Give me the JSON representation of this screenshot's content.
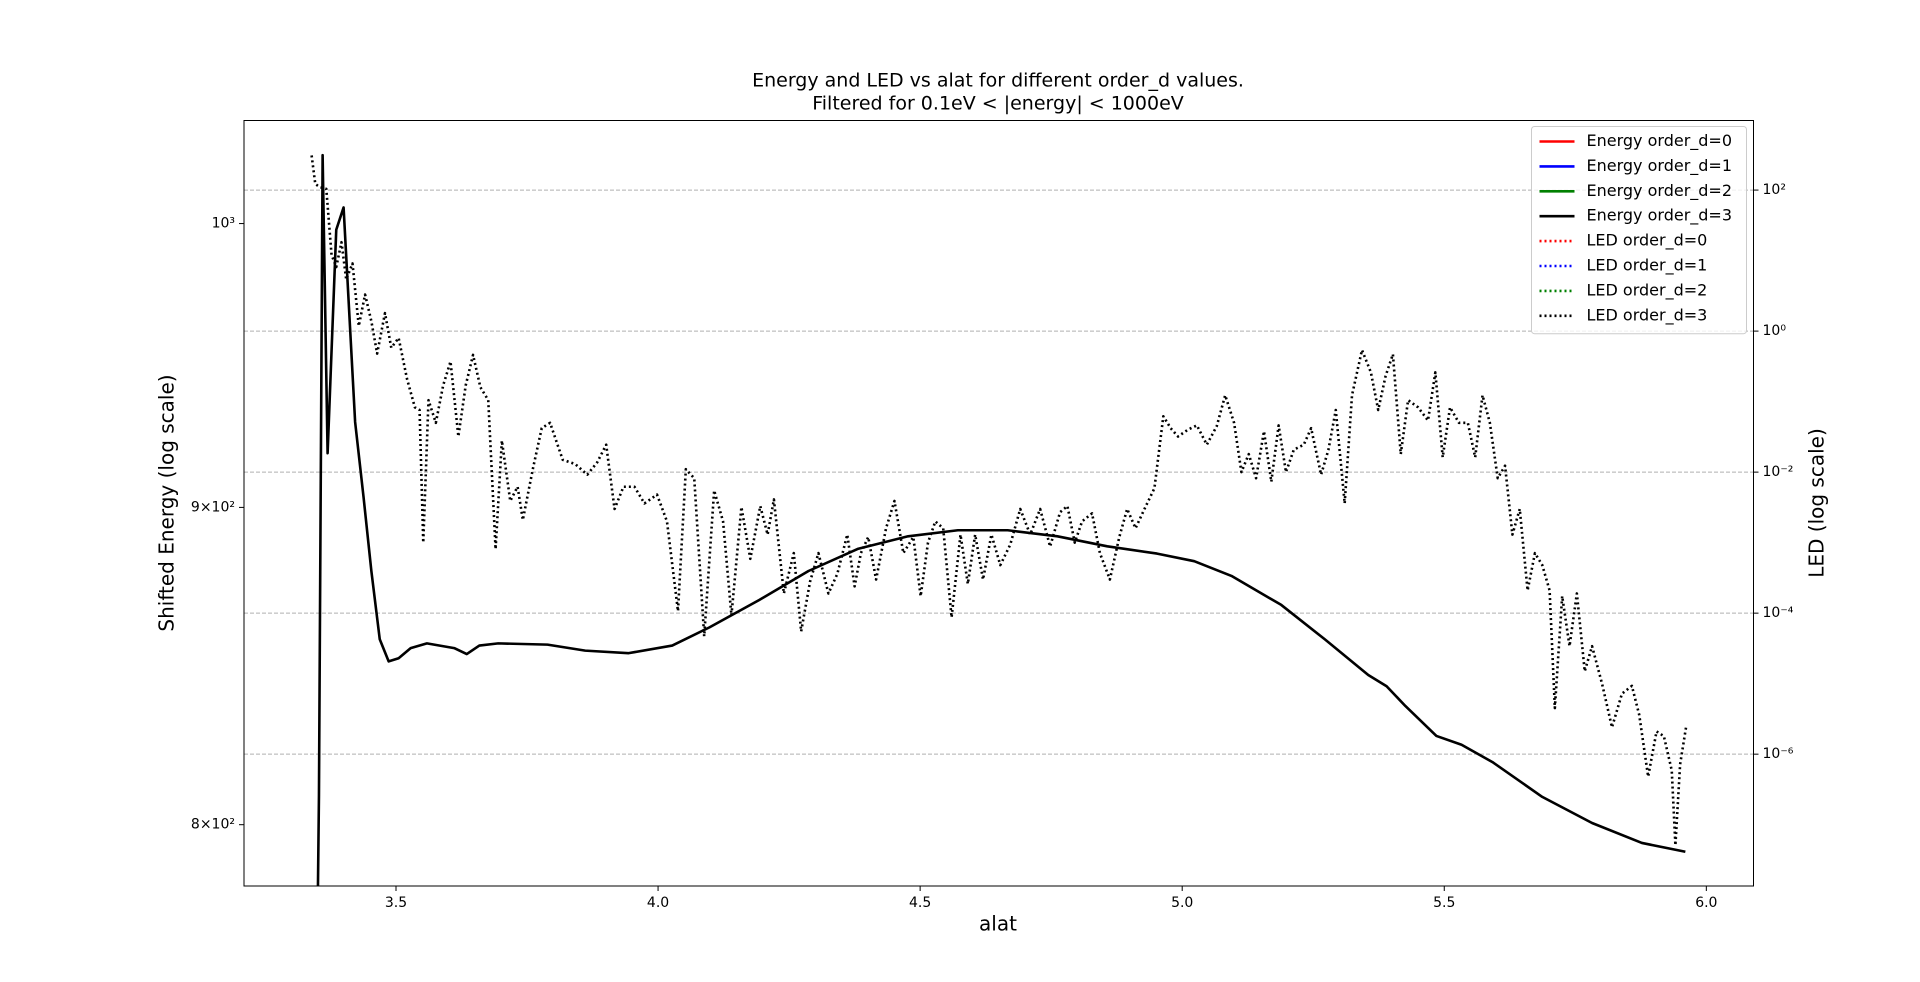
{
  "chart_data": {
    "type": "line",
    "title": "Energy and LED vs alat for different order_d values.",
    "subtitle": "Filtered for 0.1eV < |energy| < 1000eV",
    "xlabel": "alat",
    "ylabel": "Shifted Energy (log scale)",
    "y2label": "LED (log scale)",
    "xlim": [
      3.21,
      6.09
    ],
    "xticks": [
      3.5,
      {
        "value": 4,
        "label": "4.0"
      },
      4.5,
      {
        "value": 5,
        "label": "5.0"
      },
      5.5,
      {
        "value": 6,
        "label": "6.0"
      }
    ],
    "ylim": [
      782,
      1039
    ],
    "yscale": "log",
    "yticks": [
      {
        "value": 800,
        "label": "8×10²"
      },
      {
        "value": 900,
        "label": "9×10²"
      },
      {
        "value": 1000,
        "label": "10³"
      }
    ],
    "y2lim": [
      1.35e-08,
      970
    ],
    "y2scale": "log",
    "y2ticks": [
      {
        "value": 1e-06,
        "label": "10⁻⁶"
      },
      {
        "value": 0.0001,
        "label": "10⁻⁴"
      },
      {
        "value": 0.01,
        "label": "10⁻²"
      },
      {
        "value": 1,
        "label": "10⁰"
      },
      {
        "value": 100,
        "label": "10²"
      }
    ],
    "grid": true,
    "grid_axis": "y2",
    "legend": "upper right",
    "series": [
      {
        "name": "Energy order_d=0",
        "color": "#ff0000",
        "linestyle": "solid",
        "axis": "y",
        "x": [],
        "values": []
      },
      {
        "name": "Energy order_d=1",
        "color": "#0000ff",
        "linestyle": "solid",
        "axis": "y",
        "x": [],
        "values": []
      },
      {
        "name": "Energy order_d=2",
        "color": "#008000",
        "linestyle": "solid",
        "axis": "y",
        "x": [],
        "values": []
      },
      {
        "name": "Energy order_d=3",
        "color": "#000000",
        "linestyle": "solid",
        "axis": "y",
        "x": [
          3.3506,
          3.353,
          3.36,
          3.3695,
          3.386,
          3.4,
          3.422,
          3.438,
          3.453,
          3.469,
          3.486,
          3.505,
          3.528,
          3.559,
          3.611,
          3.635,
          3.659,
          3.695,
          3.789,
          3.861,
          3.944,
          4.027,
          4.098,
          4.193,
          4.287,
          4.382,
          4.477,
          4.572,
          4.667,
          4.762,
          4.857,
          4.952,
          5.023,
          5.094,
          5.189,
          5.272,
          5.355,
          5.39,
          5.426,
          5.485,
          5.533,
          5.592,
          5.687,
          5.782,
          5.877,
          5.96
        ],
        "values": [
          775,
          808.6,
          1025.7,
          918.3,
          997.7,
          1006,
          929,
          903.6,
          879,
          857,
          850,
          851,
          854.2,
          855.7,
          854.2,
          852.3,
          855,
          855.7,
          855.3,
          853.4,
          852.6,
          855,
          860.8,
          869.6,
          879,
          886.3,
          890.4,
          892.4,
          892.4,
          890.4,
          887.1,
          884.7,
          882.2,
          877.4,
          868,
          857,
          845.7,
          842.2,
          836,
          826.8,
          824.1,
          818.8,
          808.3,
          800.5,
          794.6,
          792
        ]
      },
      {
        "name": "LED order_d=0",
        "color": "#ff0000",
        "linestyle": "dotted",
        "axis": "y2",
        "x": [],
        "values": []
      },
      {
        "name": "LED order_d=1",
        "color": "#0000ff",
        "linestyle": "dotted",
        "axis": "y2",
        "x": [],
        "values": []
      },
      {
        "name": "LED order_d=2",
        "color": "#008000",
        "linestyle": "dotted",
        "axis": "y2",
        "x": [],
        "values": []
      },
      {
        "name": "LED order_d=3",
        "color": "#000000",
        "linestyle": "dotted",
        "axis": "y2",
        "x": [
          3.339,
          3.346,
          3.355,
          3.367,
          3.377,
          3.386,
          3.396,
          3.405,
          3.417,
          3.429,
          3.441,
          3.453,
          3.464,
          3.479,
          3.491,
          3.505,
          3.521,
          3.536,
          3.545,
          3.552,
          3.562,
          3.576,
          3.59,
          3.604,
          3.619,
          3.633,
          3.647,
          3.661,
          3.676,
          3.69,
          3.702,
          3.718,
          3.732,
          3.742,
          3.761,
          3.778,
          3.794,
          3.818,
          3.842,
          3.865,
          3.884,
          3.901,
          3.917,
          3.934,
          3.955,
          3.974,
          3.998,
          4.017,
          4.038,
          4.053,
          4.069,
          4.088,
          4.107,
          4.124,
          4.14,
          4.159,
          4.176,
          4.195,
          4.209,
          4.221,
          4.24,
          4.259,
          4.273,
          4.29,
          4.306,
          4.325,
          4.342,
          4.361,
          4.375,
          4.387,
          4.401,
          4.416,
          4.435,
          4.451,
          4.468,
          4.487,
          4.501,
          4.515,
          4.529,
          4.544,
          4.56,
          4.577,
          4.591,
          4.605,
          4.62,
          4.636,
          4.653,
          4.672,
          4.691,
          4.71,
          4.729,
          4.748,
          4.767,
          4.781,
          4.795,
          4.809,
          4.828,
          4.843,
          4.862,
          4.88,
          4.895,
          4.911,
          4.928,
          4.947,
          4.964,
          4.978,
          4.992,
          5.011,
          5.028,
          5.047,
          5.066,
          5.082,
          5.099,
          5.113,
          5.127,
          5.141,
          5.156,
          5.17,
          5.184,
          5.198,
          5.213,
          5.232,
          5.246,
          5.265,
          5.279,
          5.293,
          5.31,
          5.324,
          5.343,
          5.36,
          5.374,
          5.388,
          5.402,
          5.417,
          5.431,
          5.45,
          5.469,
          5.483,
          5.497,
          5.511,
          5.528,
          5.545,
          5.559,
          5.573,
          5.587,
          5.602,
          5.616,
          5.63,
          5.644,
          5.659,
          5.673,
          5.687,
          5.701,
          5.711,
          5.725,
          5.739,
          5.753,
          5.768,
          5.782,
          5.801,
          5.82,
          5.839,
          5.858,
          5.872,
          5.889,
          5.905,
          5.919,
          5.934,
          5.941,
          5.95,
          5.962
        ],
        "values": [
          310,
          122,
          110,
          104,
          12.1,
          8.1,
          18.2,
          5.4,
          9.1,
          1.18,
          3.3,
          1.38,
          0.48,
          1.8,
          0.58,
          0.8,
          0.21,
          0.083,
          0.076,
          0.001,
          0.105,
          0.05,
          0.17,
          0.37,
          0.032,
          0.17,
          0.46,
          0.16,
          0.105,
          0.00081,
          0.028,
          0.0039,
          0.0062,
          0.0021,
          0.011,
          0.042,
          0.05,
          0.015,
          0.013,
          0.0092,
          0.0138,
          0.0245,
          0.003,
          0.0062,
          0.0062,
          0.0036,
          0.0048,
          0.002,
          0.000107,
          0.011,
          0.0082,
          4.7e-05,
          0.0055,
          0.002,
          9.3e-05,
          0.0032,
          0.00059,
          0.0033,
          0.0013,
          0.0041,
          0.00019,
          0.00071,
          5.5e-05,
          0.00028,
          0.00071,
          0.00019,
          0.00036,
          0.0013,
          0.00024,
          0.00071,
          0.0012,
          0.0003,
          0.0016,
          0.0039,
          0.00071,
          0.0012,
          0.000174,
          0.001,
          0.002,
          0.0016,
          8.7e-05,
          0.0013,
          0.00026,
          0.0013,
          0.0003,
          0.0013,
          0.00048,
          0.00094,
          0.003,
          0.0013,
          0.003,
          0.00088,
          0.0027,
          0.0033,
          0.001,
          0.002,
          0.0026,
          0.00071,
          0.0003,
          0.0012,
          0.003,
          0.0016,
          0.003,
          0.0059,
          0.062,
          0.042,
          0.032,
          0.04,
          0.046,
          0.0245,
          0.045,
          0.123,
          0.05,
          0.01,
          0.018,
          0.0082,
          0.038,
          0.0073,
          0.046,
          0.01,
          0.0208,
          0.0245,
          0.042,
          0.0092,
          0.0208,
          0.076,
          0.0036,
          0.123,
          0.54,
          0.26,
          0.076,
          0.23,
          0.47,
          0.018,
          0.105,
          0.083,
          0.054,
          0.26,
          0.0162,
          0.083,
          0.05,
          0.05,
          0.0162,
          0.123,
          0.05,
          0.0082,
          0.0123,
          0.0013,
          0.003,
          0.00021,
          0.00071,
          0.00048,
          0.00021,
          4.5e-06,
          0.000174,
          3.4e-05,
          0.00019,
          1.5e-05,
          3.4e-05,
          1e-05,
          2.4e-06,
          7.2e-06,
          9.3e-06,
          3.6e-06,
          4.8e-07,
          2.1e-06,
          1.8e-06,
          5.9e-07,
          5.1e-08,
          7.2e-07,
          2.6e-06
        ]
      }
    ]
  }
}
